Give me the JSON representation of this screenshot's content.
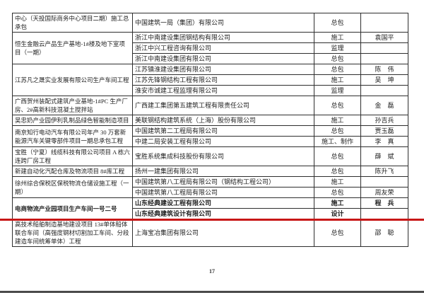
{
  "page": {
    "number": "17"
  },
  "colors": {
    "red_line": "#c81717",
    "table_border": "#2e2e2e",
    "bottom_edge": "#4a4a4a"
  },
  "table": {
    "columns": [
      "project",
      "company",
      "role",
      "person"
    ],
    "groups": [
      {
        "project": "中心（天投国际商务中心项目二期）施工总承包",
        "bold": false,
        "entries": [
          {
            "company": "中国建筑一局（集团）有限公司",
            "role": "总包",
            "person": ""
          }
        ]
      },
      {
        "project": "恒生金融云产品生产基地-1#楼及地下室项目（一期）",
        "bold": false,
        "entries": [
          {
            "company": "浙江中南建设集团钢结构有限公司",
            "role": "施工",
            "person": "袁国平"
          },
          {
            "company": "浙江中兴工程咨询有限公司",
            "role": "监理",
            "person": ""
          },
          {
            "company": "浙江中南建设集团有限公司",
            "role": "总包",
            "person": ""
          }
        ]
      },
      {
        "project": "江苏凡之晟实业发展有限公司生产车间工程",
        "bold": false,
        "entries": [
          {
            "company": "江苏镇淮建设集团有限公司",
            "role": "总包",
            "person": "陈　伟"
          },
          {
            "company": "江苏先锋钢结构工程有限公司",
            "role": "施工",
            "person": "吴　坤"
          },
          {
            "company": "淮安市诚建工程监理有限公司",
            "role": "监理",
            "person": ""
          }
        ]
      },
      {
        "project": "广西贺州装配式建筑产业基地-1#PC 生产厂房、2#高新科技混凝土搅拌站",
        "bold": false,
        "entries": [
          {
            "company": "广西建工集团第五建筑工程有限责任公司",
            "role": "总包",
            "person": "金　磊"
          }
        ]
      },
      {
        "project": "吴忠奶产业园伊利乳制品绿色智能制造项目",
        "bold": false,
        "entries": [
          {
            "company": "美联钢结构建筑系统（上海）股份有限公司",
            "role": "施工",
            "person": "孙吉兵"
          }
        ]
      },
      {
        "project": "南京知行电动汽车有限公司年产 30 万套新能源汽车关键零部件项目一期总承包工程",
        "bold": false,
        "entries": [
          {
            "company": "中国建筑第二工程局有限公司",
            "role": "总包",
            "person": "贾玉磊"
          },
          {
            "company": "中建二局安装工程有限公司",
            "role": "施工、制作",
            "person": "李　真"
          }
        ]
      },
      {
        "project": "宝胜（宁夏）线缆科技有限公司项目 A 栋六连跨厂房工程",
        "bold": false,
        "entries": [
          {
            "company": "宝胜系统集成科技股份有限公司",
            "role": "总包",
            "person": "薛　斌"
          }
        ]
      },
      {
        "project": "新建自动化汽配仓库及物流项目 8#库工程",
        "bold": false,
        "entries": [
          {
            "company": "扬州一建集团有限公司",
            "role": "总包",
            "person": "陈升飞"
          }
        ]
      },
      {
        "project": "徐州综合保税区保税物流仓储设施工程（一期）",
        "bold": false,
        "entries": [
          {
            "company": "中国建筑第八工程局有限公司（钢结构工程公司）",
            "role": "施工",
            "person": ""
          },
          {
            "company": "中国建筑第八工程局有限公司",
            "role": "总包",
            "person": "周友荣"
          }
        ]
      },
      {
        "project": "电商物流产业园项目生产车间一号二号",
        "bold": true,
        "entries": [
          {
            "company": "山东经典建设工程有限公司",
            "role": "施工",
            "person": "程　兵"
          },
          {
            "company": "山东经典建筑设计有限公司",
            "role": "设计",
            "person": ""
          }
        ]
      },
      {
        "project": "高技术船舶制造基地建设项目 13#单体船体联合车间（高强度钢材切割加工车间、分段建造车间统筹单体）工程",
        "bold": false,
        "entries": [
          {
            "company": "上海宝冶集团有限公司",
            "role": "总包",
            "person": "邵　聪"
          }
        ]
      }
    ]
  }
}
